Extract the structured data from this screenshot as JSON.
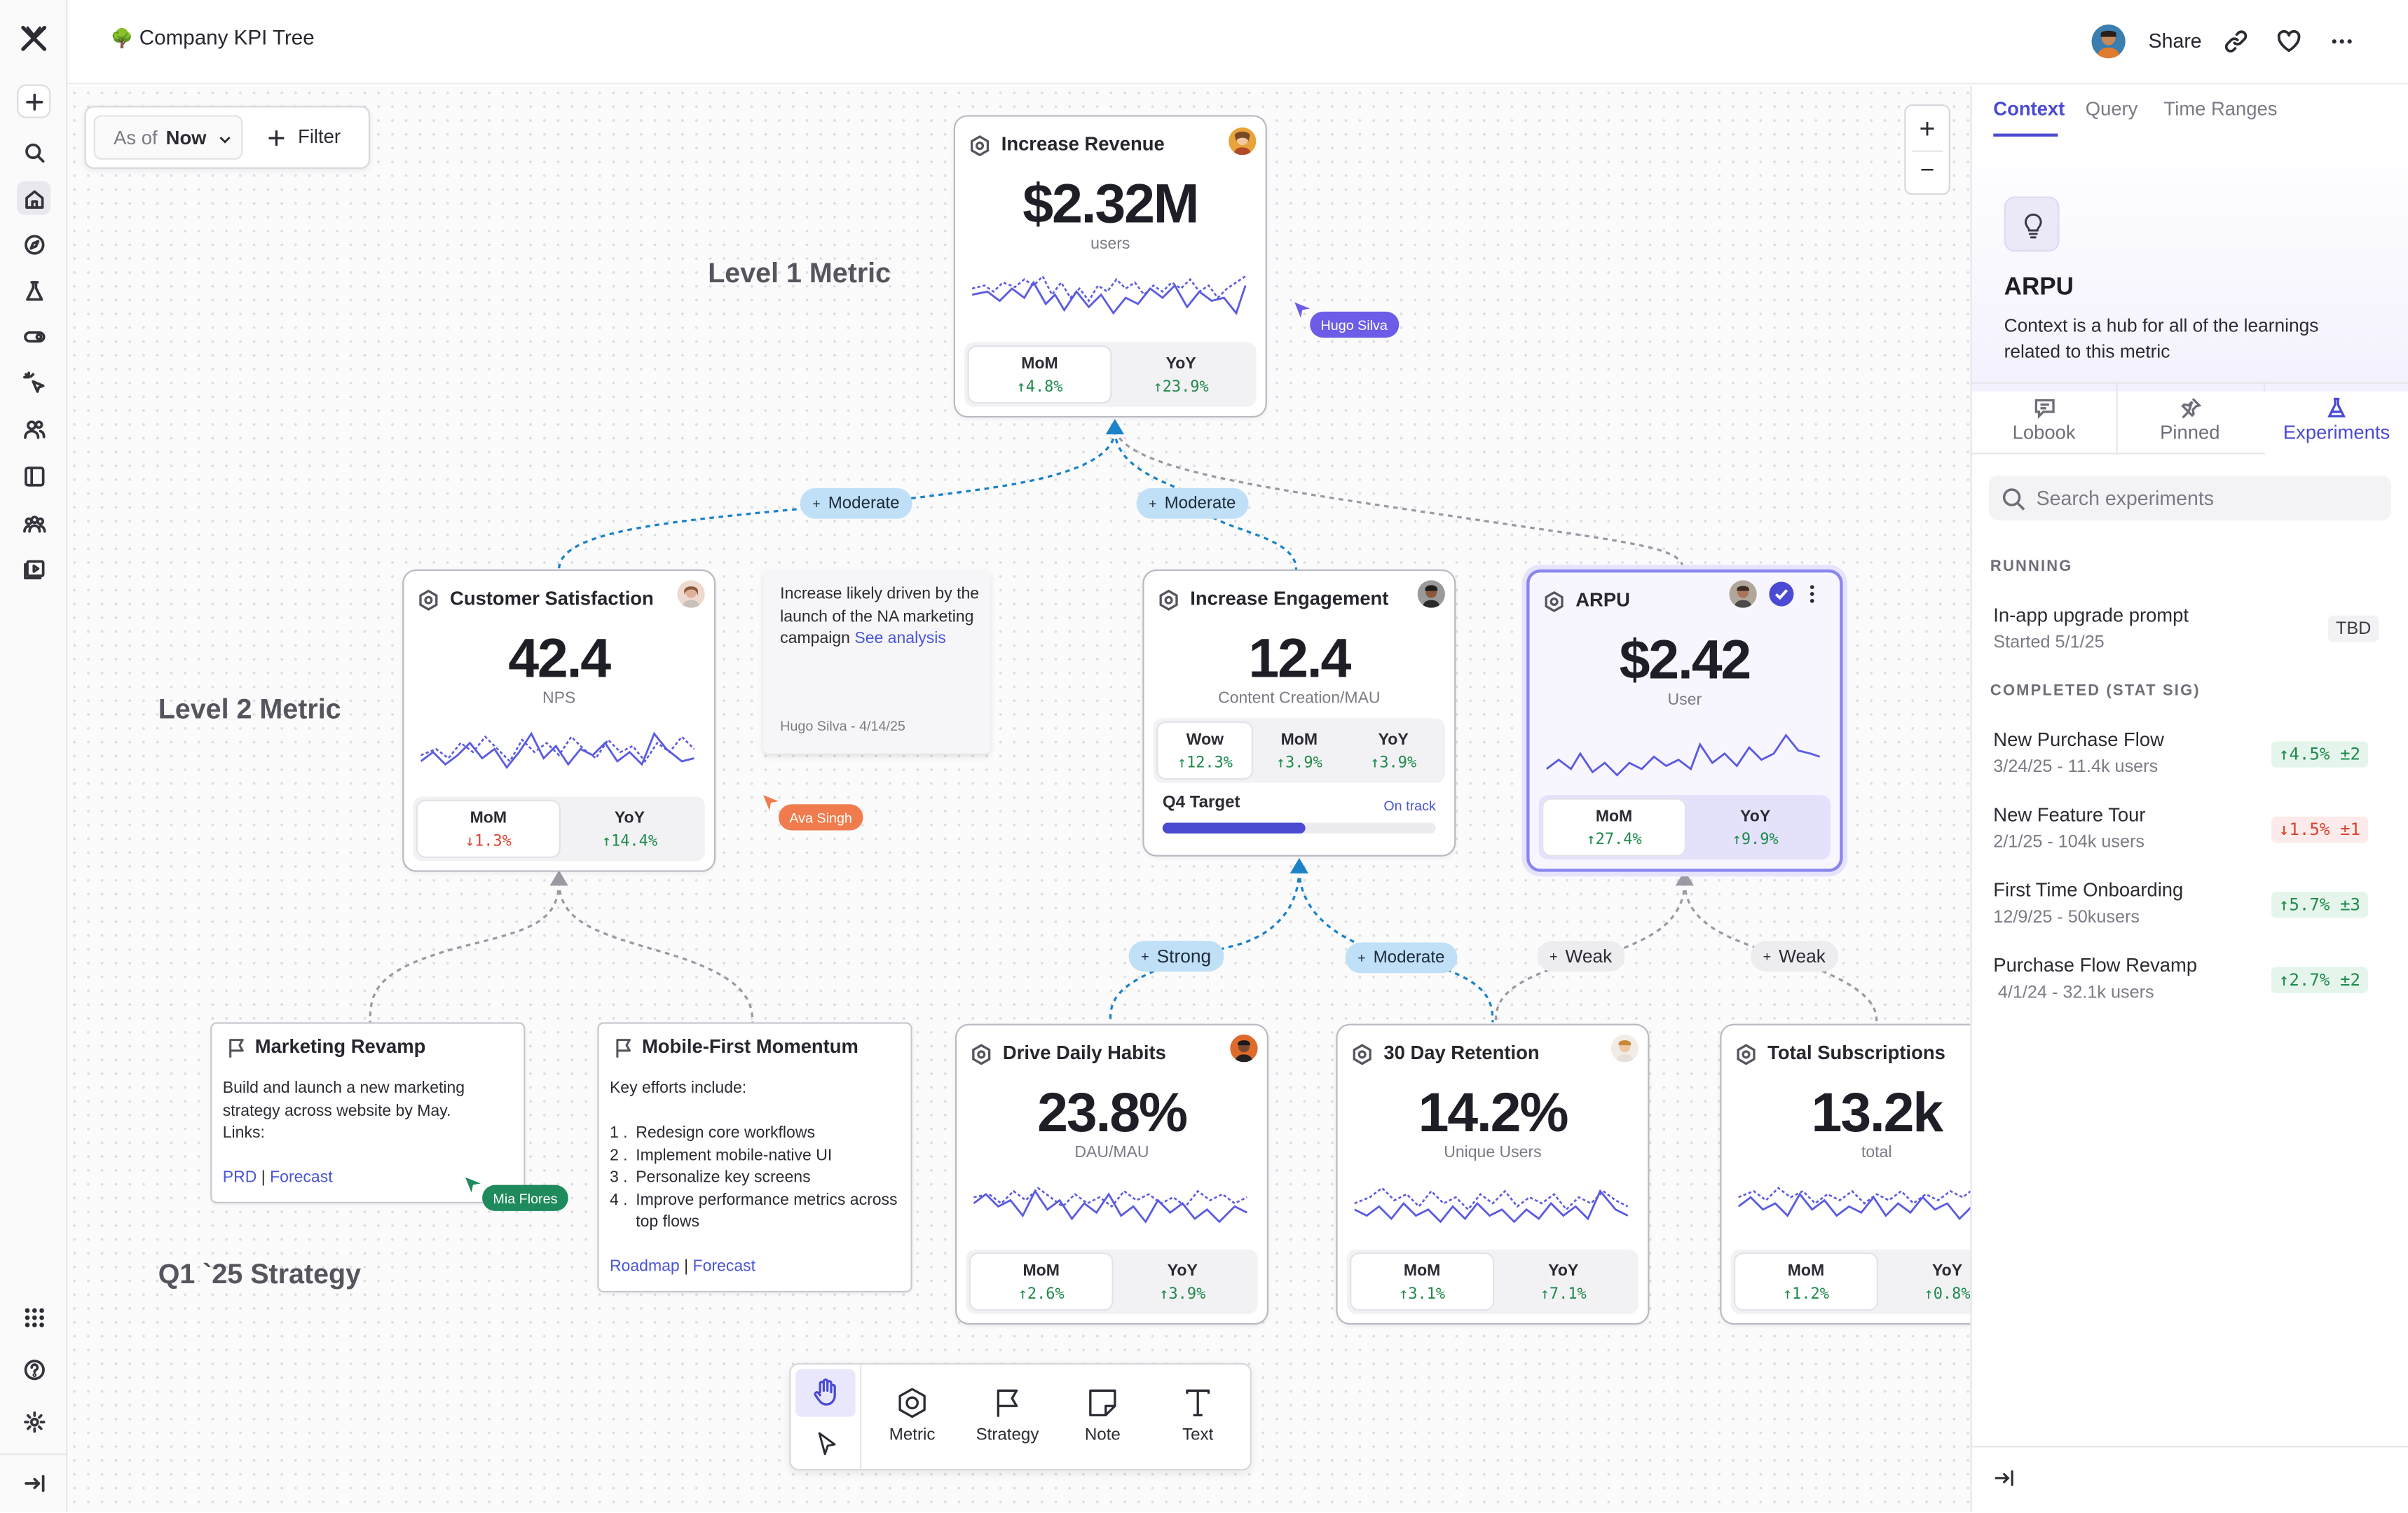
{
  "app": {
    "title": "Company KPI Tree",
    "title_emoji": "🌳"
  },
  "header": {
    "share_label": "Share"
  },
  "filter": {
    "as_of_label": "As of",
    "as_of_value": "Now",
    "filter_label": "Filter"
  },
  "zoom": {
    "in": "+",
    "out": "−"
  },
  "levels": {
    "l1": "Level 1 Metric",
    "l2": "Level 2 Metric",
    "strategy": "Q1 `25 Strategy"
  },
  "metrics": {
    "revenue": {
      "title": "Increase Revenue",
      "value": "$2.32M",
      "unit": "users",
      "mom_label": "MoM",
      "mom": "↑4.8%",
      "yoy_label": "YoY",
      "yoy": "↑23.9%"
    },
    "csat": {
      "title": "Customer Satisfaction",
      "value": "42.4",
      "unit": "NPS",
      "mom_label": "MoM",
      "mom": "↓1.3%",
      "yoy_label": "YoY",
      "yoy": "↑14.4%"
    },
    "engagement": {
      "title": "Increase Engagement",
      "value": "12.4",
      "unit": "Content Creation/MAU",
      "wow_label": "Wow",
      "wow": "↑12.3%",
      "mom_label": "MoM",
      "mom": "↑3.9%",
      "yoy_label": "YoY",
      "yoy": "↑3.9%",
      "target_label": "Q4 Target",
      "target_status": "On track",
      "target_progress": 0.52
    },
    "arpu": {
      "title": "ARPU",
      "value": "$2.42",
      "unit": "User",
      "mom_label": "MoM",
      "mom": "↑27.4%",
      "yoy_label": "YoY",
      "yoy": "↑9.9%"
    },
    "habits": {
      "title": "Drive Daily Habits",
      "value": "23.8%",
      "unit": "DAU/MAU",
      "mom_label": "MoM",
      "mom": "↑2.6%",
      "yoy_label": "YoY",
      "yoy": "↑3.9%"
    },
    "retention": {
      "title": "30 Day Retention",
      "value": "14.2%",
      "unit": "Unique Users",
      "mom_label": "MoM",
      "mom": "↑3.1%",
      "yoy_label": "YoY",
      "yoy": "↑7.1%"
    },
    "subs": {
      "title": "Total Subscriptions",
      "value": "13.2k",
      "unit": "total",
      "mom_label": "MoM",
      "mom": "↑1.2%",
      "yoy_label": "YoY",
      "yoy": "↑0.8%"
    }
  },
  "links": {
    "moderate": "Moderate",
    "strong": "Strong",
    "weak": "Weak",
    "plus": "+"
  },
  "note": {
    "text": "Increase likely driven by the launch of the NA marketing campaign",
    "link": "See analysis",
    "author": "Hugo Silva - 4/14/25"
  },
  "cursors": {
    "hugo": "Hugo Silva",
    "ava": "Ava Singh",
    "mia": "Mia Flores"
  },
  "strategies": {
    "marketing": {
      "title": "Marketing Revamp",
      "body": "Build and launch a new marketing strategy across website by May.",
      "links_label": "Links:",
      "link1": "PRD",
      "sep": "|",
      "link2": "Forecast"
    },
    "mobile": {
      "title": "Mobile-First Momentum",
      "intro": "Key efforts include:",
      "items": [
        "Redesign core workflows",
        "Implement mobile-native UI",
        "Personalize key screens",
        "Improve performance metrics across top flows"
      ],
      "link1": "Roadmap",
      "sep": "|",
      "link2": "Forecast"
    }
  },
  "toolbar": {
    "metric": "Metric",
    "strategy": "Strategy",
    "note": "Note",
    "text": "Text"
  },
  "panel": {
    "tabs": [
      "Context",
      "Query",
      "Time Ranges"
    ],
    "title": "ARPU",
    "description": "Context is a hub for all of the learnings related to this metric",
    "subtabs": [
      "Lobook",
      "Pinned",
      "Experiments"
    ],
    "search_placeholder": "Search experiments",
    "running_label": "RUNNING",
    "completed_label": "COMPLETED (STAT SIG)",
    "running": [
      {
        "name": "In-app upgrade prompt",
        "date": "Started 5/1/25",
        "status": "TBD"
      }
    ],
    "completed": [
      {
        "name": "New Purchase Flow",
        "date": "3/24/25 - 11.4k users",
        "result": "↑4.5% ±2"
      },
      {
        "name": "New Feature Tour",
        "date": "2/1/25 - 104k users",
        "result": "↓1.5% ±1"
      },
      {
        "name": "First Time Onboarding",
        "date": "12/9/25 - 50kusers",
        "result": "↑5.7% ±3"
      },
      {
        "name": "Purchase Flow Revamp",
        "date": "4/1/24 - 32.1k users",
        "result": "↑2.7% ±2"
      }
    ]
  },
  "colors": {
    "accent": "#4a4ad2",
    "link_blue": "#1a82c8",
    "positive": "#1f8a4c",
    "negative": "#d8432f"
  }
}
